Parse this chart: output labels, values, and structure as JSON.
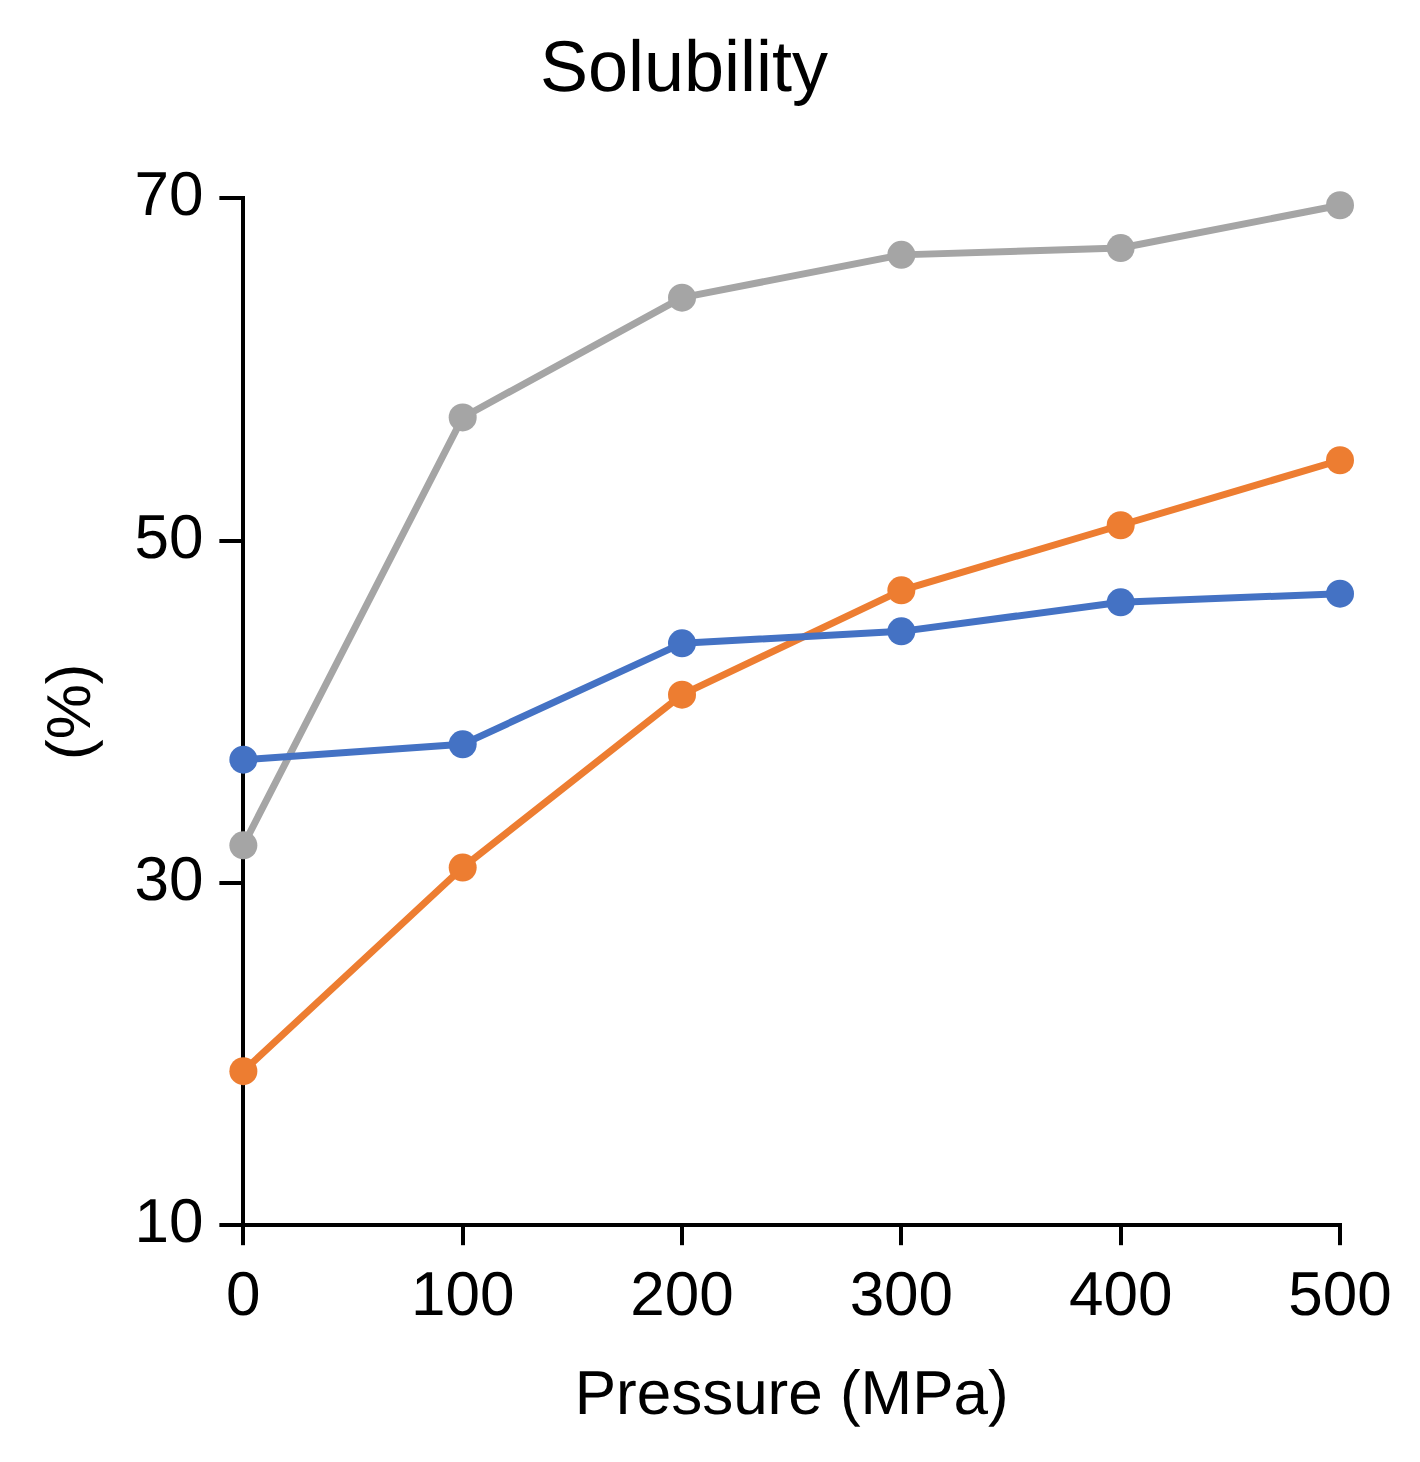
{
  "chart_data": {
    "type": "line",
    "title": "Solubility",
    "xlabel": "Pressure (MPa)",
    "ylabel": "(%)",
    "x": [
      0,
      100,
      200,
      300,
      400,
      500
    ],
    "series": [
      {
        "color": "#4472c4",
        "values": [
          37.2,
          38.1,
          44.0,
          44.7,
          46.4,
          46.9
        ]
      },
      {
        "color": "#ed7d31",
        "values": [
          19.0,
          30.9,
          41.0,
          47.1,
          50.9,
          54.7
        ]
      },
      {
        "color": "#a5a5a5",
        "values": [
          32.2,
          57.2,
          64.2,
          66.7,
          67.1,
          69.6
        ]
      }
    ],
    "xlim": [
      0,
      500
    ],
    "xticks": [
      0,
      100,
      200,
      300,
      400,
      500
    ],
    "ylim": [
      10,
      70
    ],
    "yticks": [
      10,
      30,
      50,
      70
    ],
    "grid": false,
    "legend": false,
    "marker": "circle",
    "line_style": "solid"
  }
}
